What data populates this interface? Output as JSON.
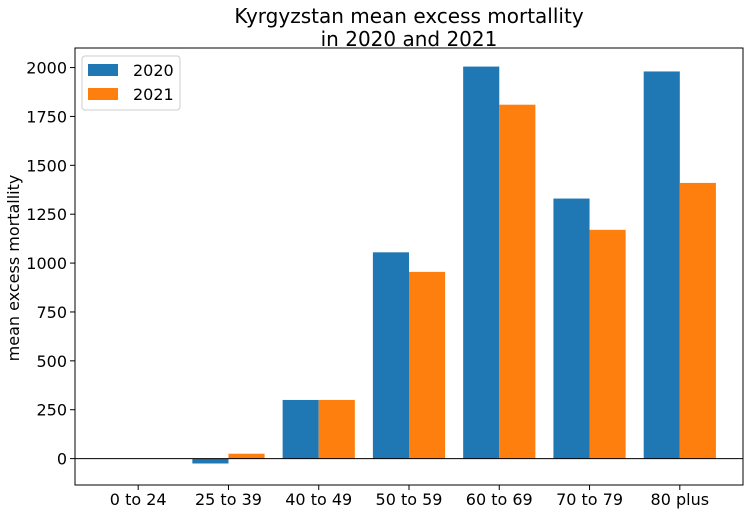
{
  "chart_data": {
    "type": "bar",
    "title_line1": "Kyrgyzstan mean excess mortallity",
    "title_line2": "in 2020 and 2021",
    "xlabel": "",
    "ylabel": "mean excess mortallity",
    "categories": [
      "0 to 24",
      "25 to 39",
      "40 to 49",
      "50 to 59",
      "60 to 69",
      "70 to 79",
      "80 plus"
    ],
    "series": [
      {
        "name": "2020",
        "color": "#1f77b4",
        "values": [
          0,
          -25,
          300,
          1055,
          2005,
          1330,
          1980
        ]
      },
      {
        "name": "2021",
        "color": "#ff7f0e",
        "values": [
          0,
          25,
          300,
          955,
          1810,
          1170,
          1410
        ]
      }
    ],
    "ylim": [
      -135,
      2100
    ],
    "yticks": [
      0,
      250,
      500,
      750,
      1000,
      1250,
      1500,
      1750,
      2000
    ],
    "zero_line": true,
    "grid": false,
    "legend_position": "top-left"
  }
}
